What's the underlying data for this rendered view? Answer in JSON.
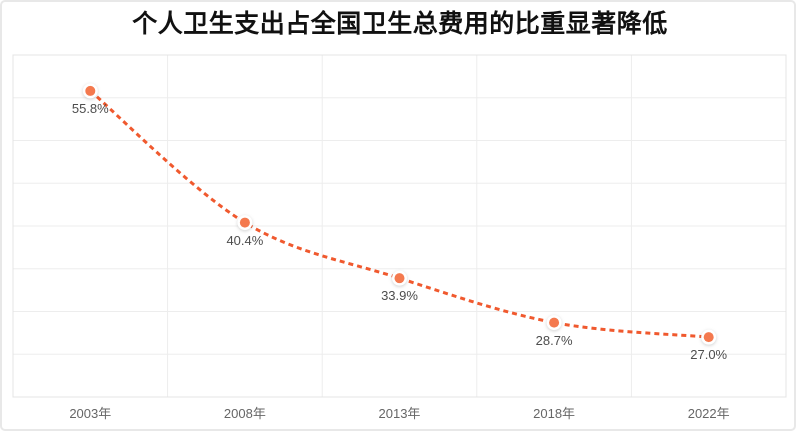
{
  "title": "个人卫生支出占全国卫生总费用的比重显著降低",
  "colors": {
    "line": "#F0592E",
    "marker": "#F4794E",
    "marker_ring": "#FFFFFF",
    "grid": "#EDEDED",
    "plot_border": "#E4E4E4",
    "card_border": "#E8E8E8",
    "title_text": "#111111",
    "value_label_text": "#4D4D4D",
    "axis_label_text": "#666666"
  },
  "chart_data": {
    "type": "line",
    "title": "个人卫生支出占全国卫生总费用的比重显著降低",
    "categories": [
      "2003年",
      "2008年",
      "2013年",
      "2018年",
      "2022年"
    ],
    "values": [
      55.8,
      40.4,
      33.9,
      28.7,
      27.0
    ],
    "labels": [
      "55.8%",
      "40.4%",
      "33.9%",
      "28.7%",
      "27.0%"
    ],
    "xlabel": "",
    "ylabel": "",
    "ylim": [
      20,
      60
    ],
    "y_gridline_step": 5,
    "grid": "on",
    "legend": "none",
    "line_style": "dashed",
    "smooth": true,
    "y_tick_labels_visible": false
  }
}
